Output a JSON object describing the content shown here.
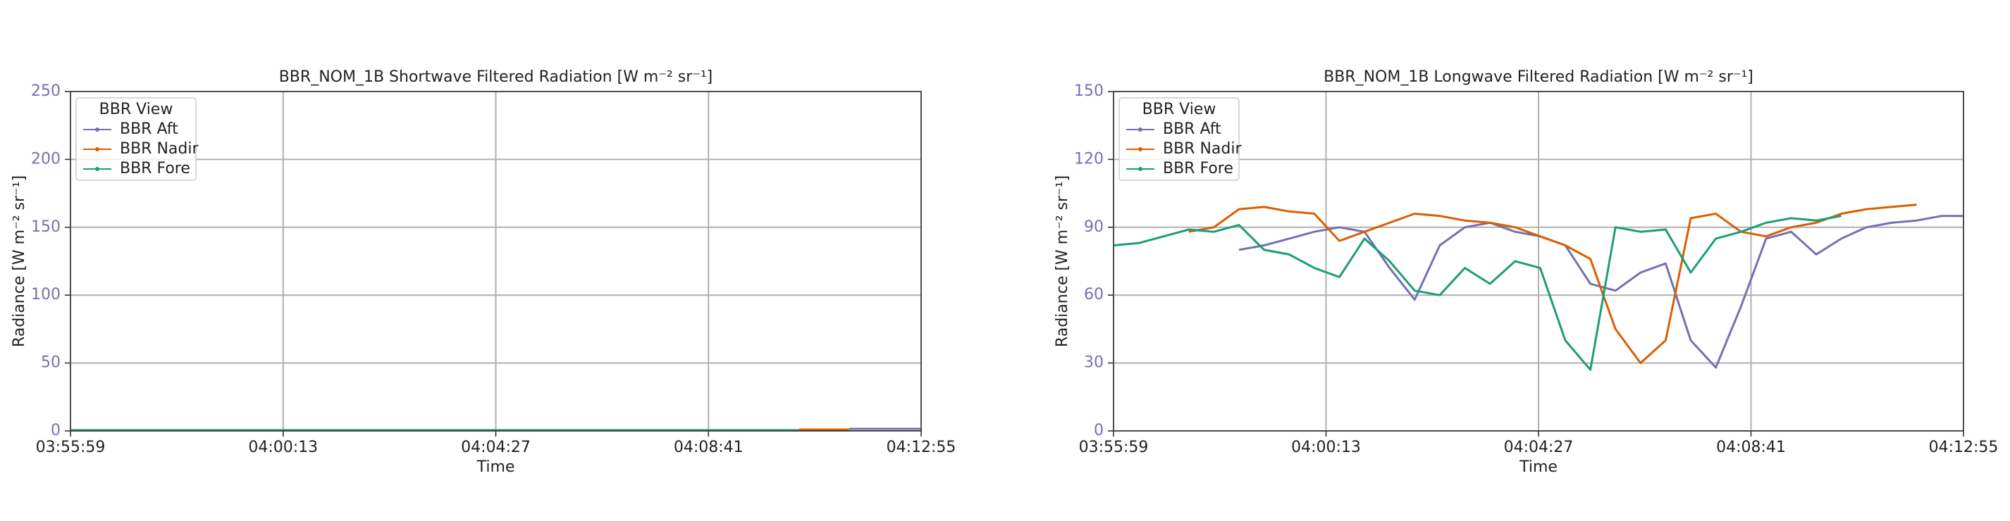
{
  "chart_data": [
    {
      "type": "line",
      "title": "BBR_NOM_1B Shortwave Filtered Radiation [W m⁻² sr⁻¹]",
      "xlabel": "Time",
      "ylabel": "Radiance [W m⁻² sr⁻¹]",
      "x": [
        "03:55:59",
        "03:56:29",
        "03:56:59",
        "03:57:29",
        "03:57:59",
        "03:58:29",
        "03:58:59",
        "03:59:29",
        "03:59:59",
        "04:00:29",
        "04:00:59",
        "04:01:29",
        "04:01:59",
        "04:02:29",
        "04:02:59",
        "04:03:29",
        "04:03:59",
        "04:04:29",
        "04:04:59",
        "04:05:29",
        "04:05:59",
        "04:06:29",
        "04:06:59",
        "04:07:29",
        "04:07:59",
        "04:08:29",
        "04:08:59",
        "04:09:29",
        "04:09:59",
        "04:10:29",
        "04:10:59",
        "04:11:29",
        "04:11:59",
        "04:12:29",
        "04:12:55"
      ],
      "xlim": [
        "03:55:59",
        "04:12:55"
      ],
      "xticks": [
        "03:55:59",
        "04:00:13",
        "04:04:27",
        "04:08:41",
        "04:12:55"
      ],
      "ylim": [
        0,
        250
      ],
      "yticks": [
        0,
        50,
        100,
        150,
        200,
        250
      ],
      "grid": true,
      "legend": {
        "title": "BBR View",
        "loc": "upper left"
      },
      "series": [
        {
          "name": "BBR Aft",
          "color": "#7570b3",
          "values": [
            null,
            null,
            null,
            null,
            null,
            null,
            null,
            null,
            null,
            null,
            null,
            null,
            null,
            null,
            null,
            null,
            null,
            null,
            null,
            null,
            null,
            null,
            null,
            null,
            null,
            null,
            null,
            null,
            null,
            null,
            null,
            1.5,
            1.5,
            1.5,
            1.5
          ]
        },
        {
          "name": "BBR Nadir",
          "color": "#d95f02",
          "values": [
            null,
            null,
            null,
            null,
            null,
            null,
            null,
            null,
            null,
            null,
            null,
            null,
            null,
            null,
            null,
            null,
            null,
            null,
            null,
            null,
            null,
            null,
            null,
            null,
            null,
            null,
            null,
            null,
            null,
            1,
            1,
            1,
            null,
            null,
            null
          ]
        },
        {
          "name": "BBR Fore",
          "color": "#1b9e77",
          "values": [
            0.5,
            0.5,
            0.5,
            0.5,
            0.5,
            0.5,
            0.5,
            0.5,
            0.5,
            0.5,
            0.5,
            0.5,
            0.5,
            0.5,
            0.5,
            0.5,
            0.5,
            0.5,
            0.5,
            0.5,
            0.5,
            0.5,
            0.5,
            0.5,
            0.5,
            0.5,
            0.5,
            0.5,
            0.5,
            0.5,
            null,
            null,
            null,
            null,
            null
          ]
        }
      ]
    },
    {
      "type": "line",
      "title": "BBR_NOM_1B Longwave Filtered Radiation [W m⁻² sr⁻¹]",
      "xlabel": "Time",
      "ylabel": "Radiance [W m⁻² sr⁻¹]",
      "x": [
        "03:55:59",
        "03:56:29",
        "03:56:59",
        "03:57:29",
        "03:57:59",
        "03:58:29",
        "03:58:59",
        "03:59:29",
        "03:59:59",
        "04:00:29",
        "04:00:59",
        "04:01:29",
        "04:01:59",
        "04:02:29",
        "04:02:59",
        "04:03:29",
        "04:03:59",
        "04:04:29",
        "04:04:59",
        "04:05:29",
        "04:05:59",
        "04:06:29",
        "04:06:59",
        "04:07:29",
        "04:07:59",
        "04:08:29",
        "04:08:59",
        "04:09:29",
        "04:09:59",
        "04:10:29",
        "04:10:59",
        "04:11:29",
        "04:11:59",
        "04:12:29",
        "04:12:55"
      ],
      "xlim": [
        "03:55:59",
        "04:12:55"
      ],
      "xticks": [
        "03:55:59",
        "04:00:13",
        "04:04:27",
        "04:08:41",
        "04:12:55"
      ],
      "ylim": [
        0,
        150
      ],
      "yticks": [
        0,
        30,
        60,
        90,
        120,
        150
      ],
      "grid": true,
      "legend": {
        "title": "BBR View",
        "loc": "upper left"
      },
      "series": [
        {
          "name": "BBR Aft",
          "color": "#7570b3",
          "values": [
            null,
            null,
            null,
            null,
            null,
            80,
            82,
            85,
            88,
            90,
            88,
            72,
            58,
            82,
            90,
            92,
            88,
            86,
            82,
            65,
            62,
            70,
            74,
            40,
            28,
            55,
            85,
            88,
            78,
            85,
            90,
            92,
            93,
            95,
            95
          ]
        },
        {
          "name": "BBR Nadir",
          "color": "#d95f02",
          "values": [
            null,
            null,
            null,
            88,
            90,
            98,
            99,
            97,
            96,
            84,
            88,
            92,
            96,
            95,
            93,
            92,
            90,
            86,
            82,
            76,
            45,
            30,
            40,
            94,
            96,
            88,
            86,
            90,
            92,
            96,
            98,
            99,
            100,
            null,
            null
          ]
        },
        {
          "name": "BBR Fore",
          "color": "#1b9e77",
          "values": [
            82,
            83,
            86,
            89,
            88,
            91,
            80,
            78,
            72,
            68,
            85,
            75,
            62,
            60,
            72,
            65,
            75,
            72,
            40,
            27,
            90,
            88,
            89,
            70,
            85,
            88,
            92,
            94,
            93,
            95,
            null,
            null,
            null,
            null,
            null
          ]
        }
      ]
    }
  ]
}
